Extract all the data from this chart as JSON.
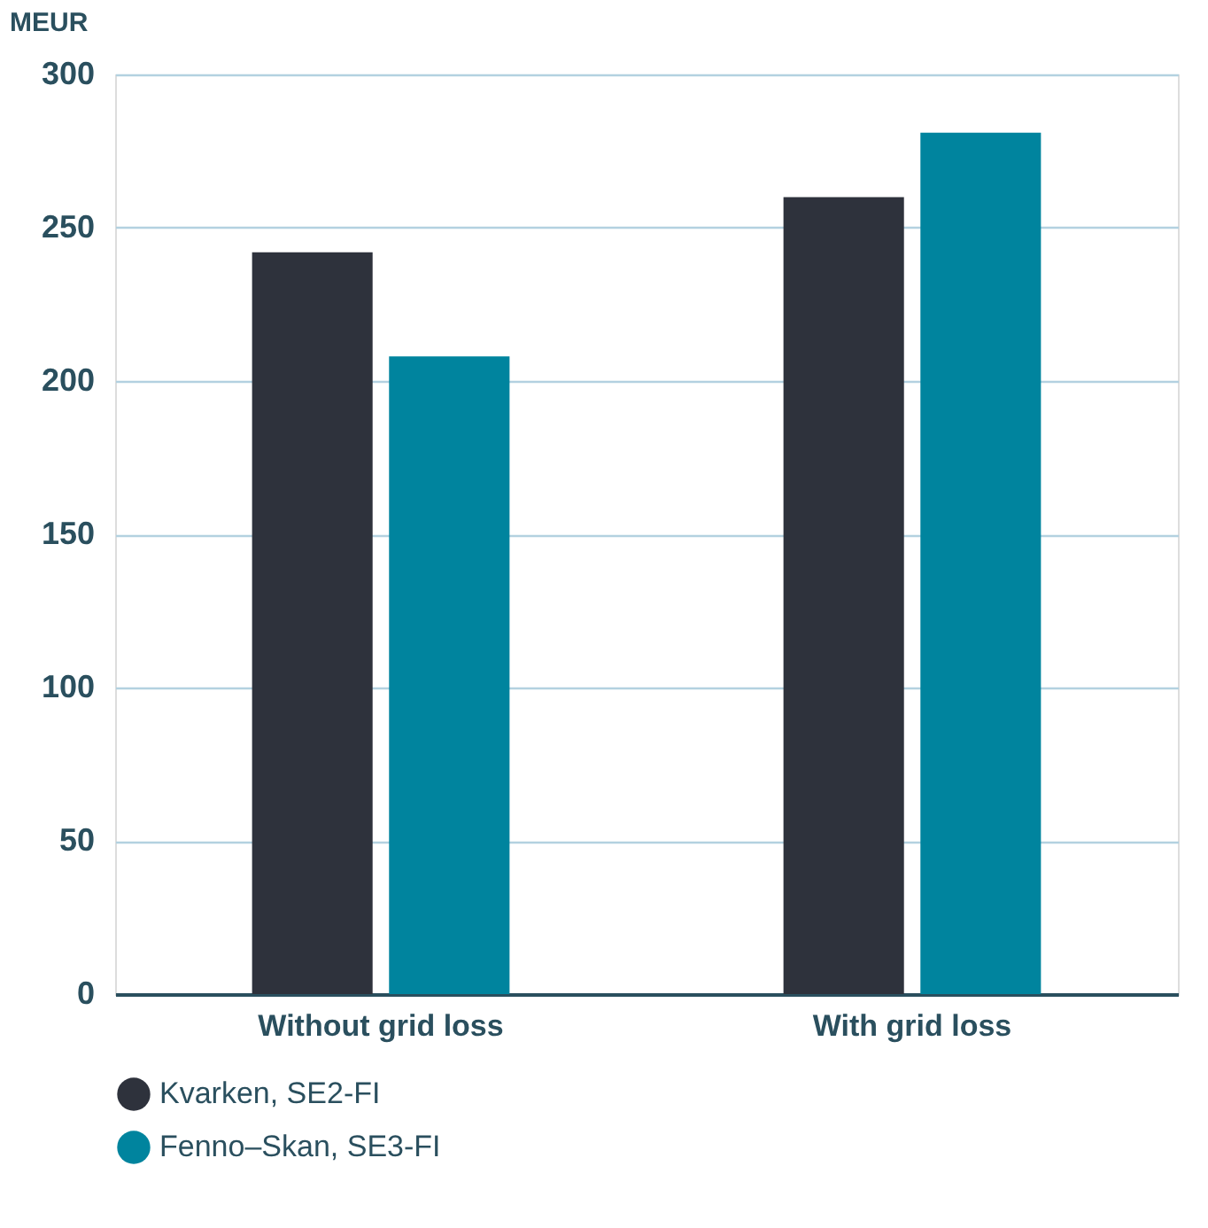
{
  "chart_data": {
    "type": "bar",
    "ylabel": "MEUR",
    "categories": [
      "Without grid loss",
      "With grid loss"
    ],
    "series": [
      {
        "name": "Kvarken, SE2-FI",
        "color": "#2e323c",
        "values": [
          242,
          260
        ]
      },
      {
        "name": "Fenno–Skan, SE3-FI",
        "color": "#00849e",
        "values": [
          208,
          281
        ]
      }
    ],
    "ylim": [
      0,
      300
    ],
    "yticks": [
      0,
      50,
      100,
      150,
      200,
      250,
      300
    ],
    "grid": "y",
    "legend": "bottom"
  }
}
